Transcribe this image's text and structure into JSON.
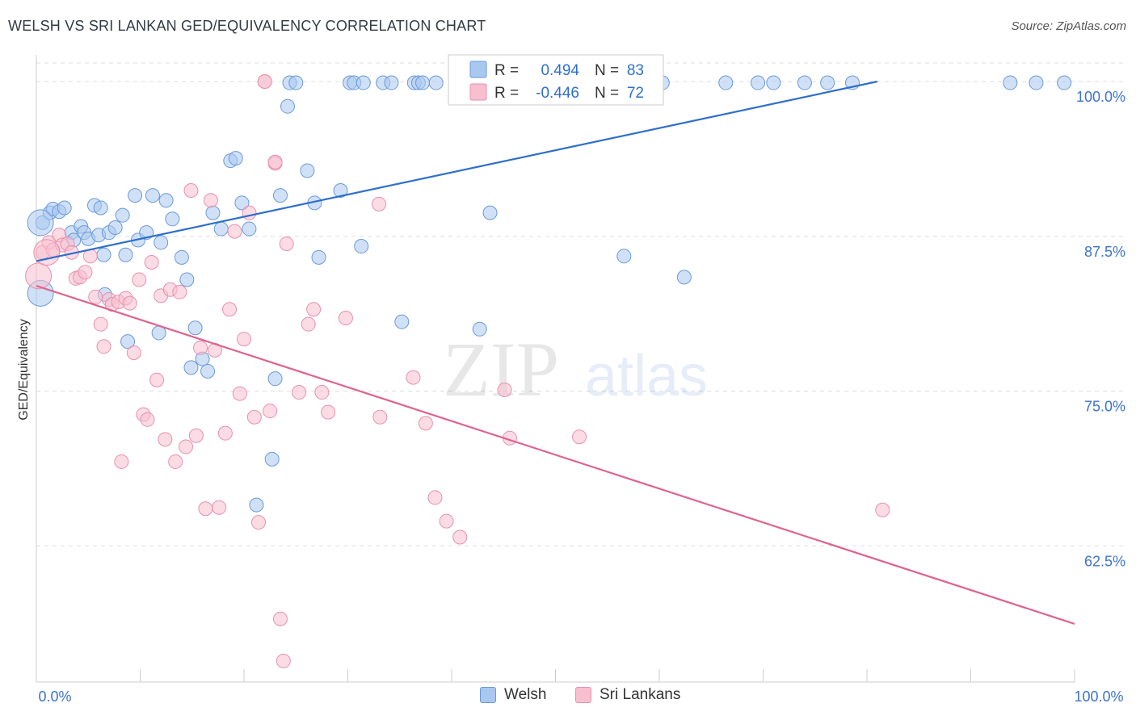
{
  "header": {
    "title": "WELSH VS SRI LANKAN GED/EQUIVALENCY CORRELATION CHART",
    "source": "Source: ZipAtlas.com"
  },
  "colors": {
    "welsh_fill": "#a9c8f0",
    "welsh_stroke": "#6a9ad8",
    "welsh_line": "#2e6fcc",
    "srilankan_fill": "#f7bfd0",
    "srilankan_stroke": "#ea8fae",
    "srilankan_line": "#e0628e",
    "tick_label": "#3d74c9",
    "grid": "#dddddd"
  },
  "watermark": {
    "part1": "ZIP",
    "part2": "atlas"
  },
  "stats_legend": {
    "rows": [
      {
        "r_label": "R =",
        "r_value": "0.494",
        "n_label": "N =",
        "n_value": "83"
      },
      {
        "r_label": "R =",
        "r_value": "-0.446",
        "n_label": "N =",
        "n_value": "72"
      }
    ]
  },
  "bottom_legend": {
    "welsh": "Welsh",
    "srilankan": "Sri Lankans"
  },
  "chart_data": {
    "type": "scatter",
    "title": "WELSH VS SRI LANKAN GED/EQUIVALENCY CORRELATION CHART",
    "xlabel": "",
    "ylabel": "GED/Equivalency",
    "xlim": [
      0,
      100
    ],
    "ylim": [
      51.5,
      101.5
    ],
    "x_tick_labels": [
      "0.0%",
      "100.0%"
    ],
    "y_ticks": [
      62.5,
      75.0,
      87.5,
      100.0
    ],
    "y_tick_labels": [
      "62.5%",
      "75.0%",
      "87.5%",
      "100.0%"
    ],
    "grid": true,
    "legend_position": "top-center",
    "series": [
      {
        "name": "Welsh",
        "r": 0.494,
        "n": 83,
        "trend": {
          "x": [
            0,
            81.0
          ],
          "y": [
            85.5,
            100.0
          ]
        },
        "points": [
          [
            0.6,
            88.6
          ],
          [
            1.3,
            89.4
          ],
          [
            1.6,
            89.7
          ],
          [
            2.2,
            89.5
          ],
          [
            2.7,
            89.8
          ],
          [
            3.4,
            87.8
          ],
          [
            3.6,
            87.2
          ],
          [
            4.3,
            88.3
          ],
          [
            4.6,
            87.8
          ],
          [
            5.0,
            87.3
          ],
          [
            5.6,
            90.0
          ],
          [
            6.0,
            87.6
          ],
          [
            6.2,
            89.8
          ],
          [
            6.5,
            86.0
          ],
          [
            7.0,
            87.8
          ],
          [
            7.6,
            88.2
          ],
          [
            8.3,
            89.2
          ],
          [
            8.6,
            86.0
          ],
          [
            9.5,
            90.8
          ],
          [
            9.8,
            87.2
          ],
          [
            10.6,
            87.8
          ],
          [
            11.2,
            90.8
          ],
          [
            12.0,
            87.0
          ],
          [
            12.5,
            90.4
          ],
          [
            13.1,
            88.9
          ],
          [
            14.0,
            85.8
          ],
          [
            14.5,
            84.0
          ],
          [
            15.3,
            80.1
          ],
          [
            16.0,
            77.6
          ],
          [
            17.0,
            89.4
          ],
          [
            17.8,
            88.1
          ],
          [
            18.7,
            93.6
          ],
          [
            19.2,
            93.8
          ],
          [
            19.8,
            90.2
          ],
          [
            20.5,
            88.1
          ],
          [
            21.2,
            65.8
          ],
          [
            22.7,
            69.5
          ],
          [
            23.0,
            76.0
          ],
          [
            23.5,
            90.8
          ],
          [
            24.4,
            99.9
          ],
          [
            25.0,
            99.9
          ],
          [
            26.1,
            92.8
          ],
          [
            26.8,
            90.2
          ],
          [
            27.2,
            85.8
          ],
          [
            29.3,
            91.2
          ],
          [
            30.2,
            99.9
          ],
          [
            30.6,
            99.9
          ],
          [
            31.3,
            86.7
          ],
          [
            31.5,
            99.9
          ],
          [
            33.4,
            99.9
          ],
          [
            34.2,
            99.9
          ],
          [
            35.2,
            80.6
          ],
          [
            36.4,
            99.9
          ],
          [
            36.8,
            99.9
          ],
          [
            37.2,
            99.9
          ],
          [
            38.5,
            99.9
          ],
          [
            40.5,
            99.9
          ],
          [
            42.7,
            80.0
          ],
          [
            43.7,
            89.4
          ],
          [
            44.0,
            99.9
          ],
          [
            47.7,
            99.9
          ],
          [
            49.5,
            99.9
          ],
          [
            52.4,
            99.9
          ],
          [
            53.5,
            99.9
          ],
          [
            56.6,
            85.9
          ],
          [
            58.0,
            99.9
          ],
          [
            60.3,
            99.9
          ],
          [
            62.4,
            84.2
          ],
          [
            66.4,
            99.9
          ],
          [
            69.5,
            99.9
          ],
          [
            71.0,
            99.9
          ],
          [
            74.0,
            99.9
          ],
          [
            76.2,
            99.9
          ],
          [
            78.6,
            99.9
          ],
          [
            93.8,
            99.9
          ],
          [
            96.3,
            99.9
          ],
          [
            99.0,
            99.9
          ],
          [
            6.6,
            82.8
          ],
          [
            8.8,
            79.0
          ],
          [
            11.8,
            79.7
          ],
          [
            14.9,
            76.9
          ],
          [
            16.5,
            76.6
          ],
          [
            24.2,
            98.0
          ]
        ],
        "large_points": [
          [
            0.4,
            82.9
          ],
          [
            0.4,
            88.6
          ]
        ]
      },
      {
        "name": "Sri Lankans",
        "r": -0.446,
        "n": 72,
        "trend": {
          "x": [
            0,
            100.0
          ],
          "y": [
            83.5,
            56.2
          ]
        },
        "points": [
          [
            0.6,
            86.2
          ],
          [
            1.2,
            87.0
          ],
          [
            1.6,
            86.4
          ],
          [
            2.2,
            87.6
          ],
          [
            2.5,
            86.8
          ],
          [
            3.0,
            86.9
          ],
          [
            3.4,
            86.2
          ],
          [
            3.8,
            84.1
          ],
          [
            4.2,
            84.2
          ],
          [
            4.7,
            84.6
          ],
          [
            5.2,
            85.9
          ],
          [
            5.7,
            82.6
          ],
          [
            6.2,
            80.4
          ],
          [
            6.5,
            78.6
          ],
          [
            7.0,
            82.4
          ],
          [
            7.3,
            82.0
          ],
          [
            7.9,
            82.2
          ],
          [
            8.2,
            69.3
          ],
          [
            8.6,
            82.5
          ],
          [
            9.0,
            82.1
          ],
          [
            9.4,
            78.1
          ],
          [
            9.9,
            84.0
          ],
          [
            10.3,
            73.1
          ],
          [
            10.7,
            72.7
          ],
          [
            11.1,
            85.4
          ],
          [
            11.6,
            75.9
          ],
          [
            12.0,
            82.7
          ],
          [
            12.4,
            71.1
          ],
          [
            12.9,
            83.2
          ],
          [
            13.4,
            69.3
          ],
          [
            13.8,
            83.0
          ],
          [
            14.4,
            70.5
          ],
          [
            14.9,
            91.2
          ],
          [
            15.4,
            71.4
          ],
          [
            15.8,
            78.5
          ],
          [
            16.3,
            65.5
          ],
          [
            16.8,
            90.4
          ],
          [
            17.2,
            78.3
          ],
          [
            17.6,
            65.6
          ],
          [
            18.2,
            71.6
          ],
          [
            18.6,
            81.6
          ],
          [
            19.1,
            87.9
          ],
          [
            19.6,
            74.8
          ],
          [
            20.0,
            79.2
          ],
          [
            20.5,
            89.4
          ],
          [
            21.0,
            72.9
          ],
          [
            21.4,
            64.4
          ],
          [
            22.0,
            100.0
          ],
          [
            22.5,
            73.4
          ],
          [
            23.0,
            93.4
          ],
          [
            23.5,
            56.6
          ],
          [
            23.8,
            53.2
          ],
          [
            24.1,
            86.9
          ],
          [
            25.3,
            74.9
          ],
          [
            26.2,
            80.4
          ],
          [
            26.7,
            81.6
          ],
          [
            27.5,
            74.9
          ],
          [
            28.1,
            73.3
          ],
          [
            29.8,
            80.9
          ],
          [
            33.0,
            90.1
          ],
          [
            33.1,
            72.9
          ],
          [
            36.3,
            76.1
          ],
          [
            37.5,
            72.4
          ],
          [
            38.4,
            66.4
          ],
          [
            39.5,
            64.5
          ],
          [
            40.8,
            63.2
          ],
          [
            45.1,
            75.1
          ],
          [
            45.6,
            71.2
          ],
          [
            52.3,
            71.3
          ],
          [
            81.5,
            65.4
          ],
          [
            23.0,
            93.5
          ],
          [
            22.0,
            100.0
          ]
        ],
        "large_points": [
          [
            0.2,
            84.3
          ],
          [
            1.0,
            86.2
          ]
        ]
      }
    ]
  }
}
